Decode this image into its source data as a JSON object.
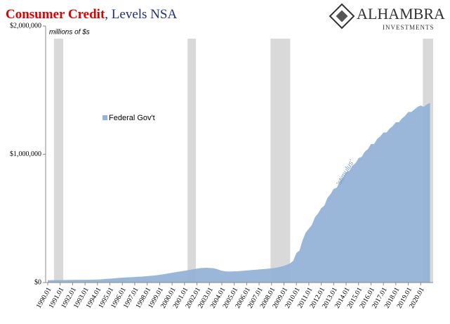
{
  "chart_data": {
    "type": "area",
    "title": "Consumer Credit",
    "subtitle": ", Levels NSA",
    "y_axis_label": "millions of $s",
    "annotation": "'stimulus'",
    "logo": {
      "name": "ALHAMBRA",
      "tagline": "INVESTMENTS"
    },
    "series": [
      {
        "name": "Federal Gov't",
        "color": "#95b3d7",
        "values": [
          18000,
          18500,
          19000,
          19500,
          19500,
          20000,
          20000,
          20500,
          20500,
          21000,
          21000,
          21500,
          21500,
          22000,
          22000,
          22500,
          23000,
          25000,
          27000,
          29000,
          30000,
          32000,
          34000,
          36000,
          38000,
          40000,
          41000,
          42000,
          43000,
          45000,
          46000,
          48000,
          50000,
          52000,
          54000,
          57000,
          60000,
          64000,
          68000,
          72000,
          76000,
          80000,
          84000,
          88000,
          92000,
          96000,
          100000,
          104000,
          108000,
          112000,
          114000,
          115000,
          114000,
          112000,
          108000,
          100000,
          92000,
          88000,
          86000,
          86000,
          88000,
          88000,
          90000,
          92000,
          94000,
          96000,
          98000,
          100000,
          102000,
          104000,
          106000,
          108000,
          110000,
          114000,
          118000,
          124000,
          130000,
          140000,
          150000,
          170000,
          230000,
          250000,
          330000,
          390000,
          420000,
          450000,
          510000,
          540000,
          580000,
          600000,
          660000,
          690000,
          730000,
          740000,
          790000,
          820000,
          860000,
          870000,
          910000,
          930000,
          970000,
          980000,
          1020000,
          1040000,
          1080000,
          1080000,
          1120000,
          1140000,
          1170000,
          1170000,
          1200000,
          1220000,
          1250000,
          1250000,
          1280000,
          1300000,
          1330000,
          1330000,
          1350000,
          1370000,
          1380000,
          1370000,
          1390000,
          1400000
        ]
      }
    ],
    "x": [
      1990,
      1990.25,
      1990.5,
      1990.75,
      1991,
      1991.25,
      1991.5,
      1991.75,
      1992,
      1992.25,
      1992.5,
      1992.75,
      1993,
      1993.25,
      1993.5,
      1993.75,
      1994,
      1994.25,
      1994.5,
      1994.75,
      1995,
      1995.25,
      1995.5,
      1995.75,
      1996,
      1996.25,
      1996.5,
      1996.75,
      1997,
      1997.25,
      1997.5,
      1997.75,
      1998,
      1998.25,
      1998.5,
      1998.75,
      1999,
      1999.25,
      1999.5,
      1999.75,
      2000,
      2000.25,
      2000.5,
      2000.75,
      2001,
      2001.25,
      2001.5,
      2001.75,
      2002,
      2002.25,
      2002.5,
      2002.75,
      2003,
      2003.25,
      2003.5,
      2003.75,
      2004,
      2004.25,
      2004.5,
      2004.75,
      2005,
      2005.25,
      2005.5,
      2005.75,
      2006,
      2006.25,
      2006.5,
      2006.75,
      2007,
      2007.25,
      2007.5,
      2007.75,
      2008,
      2008.25,
      2008.5,
      2008.75,
      2009,
      2009.25,
      2009.5,
      2009.75,
      2010,
      2010.25,
      2010.5,
      2010.75,
      2011,
      2011.25,
      2011.5,
      2011.75,
      2012,
      2012.25,
      2012.5,
      2012.75,
      2013,
      2013.25,
      2013.5,
      2013.75,
      2014,
      2014.25,
      2014.5,
      2014.75,
      2015,
      2015.25,
      2015.5,
      2015.75,
      2016,
      2016.25,
      2016.5,
      2016.75,
      2017,
      2017.25,
      2017.5,
      2017.75,
      2018,
      2018.25,
      2018.5,
      2018.75,
      2019,
      2019.25,
      2019.5,
      2019.75,
      2020,
      2020.25,
      2020.5,
      2020.75
    ],
    "shaded_periods": [
      [
        1990.5,
        1991.25
      ],
      [
        2001.25,
        2001.92
      ],
      [
        2007.92,
        2009.5
      ],
      [
        2020.17,
        2021
      ]
    ],
    "shade_color": "#d9d9d9",
    "xlim": [
      1989.83,
      2021
    ],
    "xticks": [
      {
        "value": 1990,
        "label": "1990.01"
      },
      {
        "value": 1991,
        "label": "1991.01"
      },
      {
        "value": 1992,
        "label": "1992.01"
      },
      {
        "value": 1993,
        "label": "1993.01"
      },
      {
        "value": 1994,
        "label": "1994.01"
      },
      {
        "value": 1995,
        "label": "1995.01"
      },
      {
        "value": 1996,
        "label": "1996.01"
      },
      {
        "value": 1997,
        "label": "1997.01"
      },
      {
        "value": 1998,
        "label": "1998.01"
      },
      {
        "value": 1999,
        "label": "1999.01"
      },
      {
        "value": 2000,
        "label": "2000.01"
      },
      {
        "value": 2001,
        "label": "2001.01"
      },
      {
        "value": 2002,
        "label": "2002.01"
      },
      {
        "value": 2003,
        "label": "2003.01"
      },
      {
        "value": 2004,
        "label": "2004.01"
      },
      {
        "value": 2005,
        "label": "2005.01"
      },
      {
        "value": 2006,
        "label": "2006.01"
      },
      {
        "value": 2007,
        "label": "2007.01"
      },
      {
        "value": 2008,
        "label": "2008.01"
      },
      {
        "value": 2009,
        "label": "2009.01"
      },
      {
        "value": 2010,
        "label": "2010.01"
      },
      {
        "value": 2011,
        "label": "2011.01"
      },
      {
        "value": 2012,
        "label": "2012.01"
      },
      {
        "value": 2013,
        "label": "2013.01"
      },
      {
        "value": 2014,
        "label": "2014.01"
      },
      {
        "value": 2015,
        "label": "2015.01"
      },
      {
        "value": 2016,
        "label": "2016.01"
      },
      {
        "value": 2017,
        "label": "2017.01"
      },
      {
        "value": 2018,
        "label": "2018.01"
      },
      {
        "value": 2019,
        "label": "2019.01"
      },
      {
        "value": 2020,
        "label": "2020.01"
      }
    ],
    "ylim": [
      0,
      2000000
    ],
    "yticks": [
      {
        "value": 0,
        "label": "$0"
      },
      {
        "value": 1000000,
        "label": "$1,000,000"
      },
      {
        "value": 2000000,
        "label": "$2,000,000"
      }
    ],
    "grid": false
  }
}
